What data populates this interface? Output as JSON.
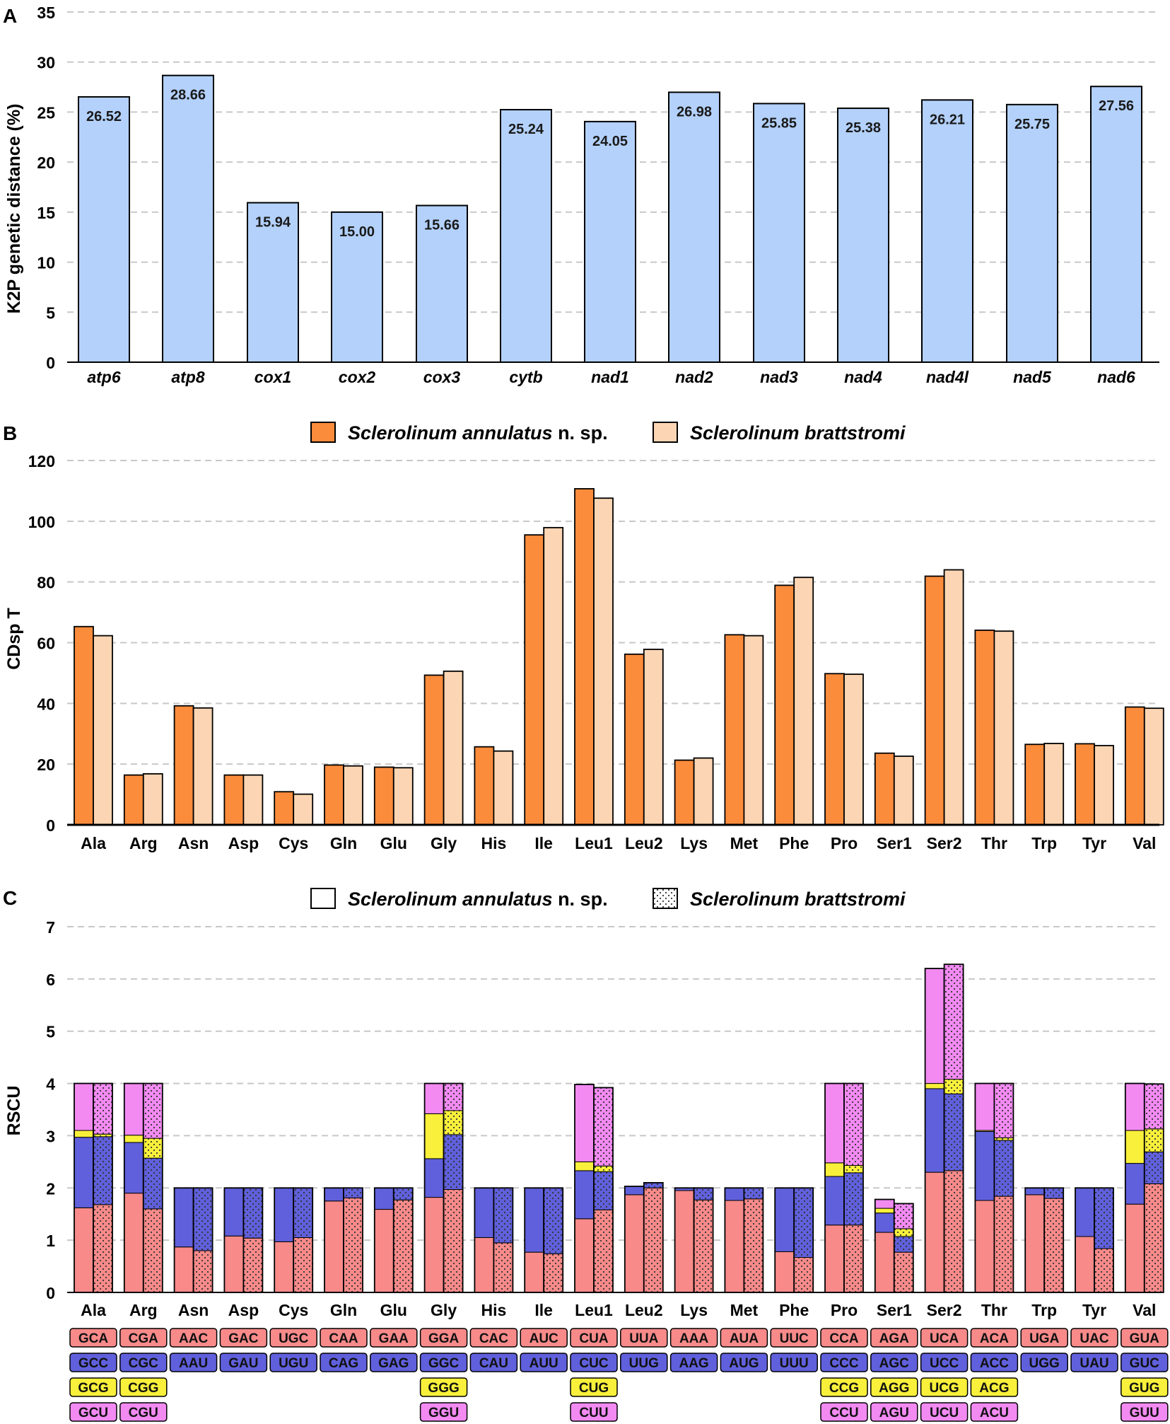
{
  "colors": {
    "barA": "#b3d1fb",
    "annulatus": "#fb8c3c",
    "brattstromi": "#fcd6b4",
    "c1": "#f88a8a",
    "c2": "#6060dc",
    "c3": "#f8f03a",
    "c4": "#f28af2",
    "grid": "#c8c8c8"
  },
  "chart_data": [
    {
      "panel": "A",
      "type": "bar",
      "title": "",
      "ylabel": "K2P genetic distance (%)",
      "xlabel": "",
      "ylim": [
        0,
        35
      ],
      "yticks": [
        "0",
        "5",
        "10",
        "15",
        "20",
        "25",
        "30",
        "35"
      ],
      "grid": "horizontal dashed",
      "categories": [
        "atp6",
        "atp8",
        "cox1",
        "cox2",
        "cox3",
        "cytb",
        "nad1",
        "nad2",
        "nad3",
        "nad4",
        "nad4l",
        "nad5",
        "nad6"
      ],
      "values": [
        26.52,
        28.66,
        15.94,
        15.0,
        15.66,
        25.24,
        24.05,
        26.98,
        25.85,
        25.38,
        26.21,
        25.75,
        27.56
      ],
      "data_labels": [
        "26.52",
        "28.66",
        "15.94",
        "15.00",
        "15.66",
        "25.24",
        "24.05",
        "26.98",
        "25.85",
        "25.38",
        "26.21",
        "25.75",
        "27.56"
      ]
    },
    {
      "panel": "B",
      "type": "bar",
      "title": "",
      "ylabel": "CDsp T",
      "xlabel": "",
      "ylim": [
        0,
        120
      ],
      "yticks": [
        "0",
        "20",
        "40",
        "60",
        "80",
        "100",
        "120"
      ],
      "grid": "horizontal dashed",
      "legend": {
        "position": "top",
        "entries": [
          {
            "italic": "Sclerolinum annulatus",
            "suffix": " n. sp."
          },
          {
            "italic": "Sclerolinum brattstromi",
            "suffix": ""
          }
        ]
      },
      "categories": [
        "Ala",
        "Arg",
        "Asn",
        "Asp",
        "Cys",
        "Gln",
        "Glu",
        "Gly",
        "His",
        "Ile",
        "Leu1",
        "Leu2",
        "Lys",
        "Met",
        "Phe",
        "Pro",
        "Ser1",
        "Ser2",
        "Thr",
        "Trp",
        "Tyr",
        "Val"
      ],
      "series": [
        {
          "name": "Sclerolinum annulatus n. sp.",
          "values": [
            65.3,
            16.4,
            39.2,
            16.4,
            10.9,
            19.7,
            19.0,
            49.3,
            25.7,
            95.5,
            110.7,
            56.2,
            21.3,
            62.6,
            78.9,
            49.8,
            23.6,
            81.9,
            64.1,
            26.5,
            26.7,
            38.8
          ]
        },
        {
          "name": "Sclerolinum brattstromi",
          "values": [
            62.3,
            16.8,
            38.5,
            16.4,
            10.1,
            19.4,
            18.8,
            50.6,
            24.3,
            97.9,
            107.6,
            57.8,
            22.0,
            62.3,
            81.5,
            49.6,
            22.6,
            84.0,
            63.8,
            26.8,
            26.1,
            38.4
          ]
        }
      ]
    },
    {
      "panel": "C",
      "type": "bar",
      "stacked": true,
      "title": "",
      "ylabel": "RSCU",
      "xlabel": "",
      "ylim": [
        0,
        7
      ],
      "yticks": [
        "0",
        "1",
        "2",
        "3",
        "4",
        "5",
        "6",
        "7"
      ],
      "grid": "horizontal dashed",
      "legend": {
        "position": "top",
        "entries": [
          {
            "italic": "Sclerolinum annulatus",
            "suffix": " n. sp."
          },
          {
            "italic": "Sclerolinum brattstromi",
            "suffix": ""
          }
        ]
      },
      "categories": [
        "Ala",
        "Arg",
        "Asn",
        "Asp",
        "Cys",
        "Gln",
        "Glu",
        "Gly",
        "His",
        "Ile",
        "Leu1",
        "Leu2",
        "Lys",
        "Met",
        "Phe",
        "Pro",
        "Ser1",
        "Ser2",
        "Thr",
        "Trp",
        "Tyr",
        "Val"
      ],
      "codons": [
        [
          "GCA",
          "GCC",
          "GCG",
          "GCU"
        ],
        [
          "CGA",
          "CGC",
          "CGG",
          "CGU"
        ],
        [
          "AAC",
          "AAU"
        ],
        [
          "GAC",
          "GAU"
        ],
        [
          "UGC",
          "UGU"
        ],
        [
          "CAA",
          "CAG"
        ],
        [
          "GAA",
          "GAG"
        ],
        [
          "GGA",
          "GGC",
          "GGG",
          "GGU"
        ],
        [
          "CAC",
          "CAU"
        ],
        [
          "AUC",
          "AUU"
        ],
        [
          "CUA",
          "CUC",
          "CUG",
          "CUU"
        ],
        [
          "UUA",
          "UUG"
        ],
        [
          "AAA",
          "AAG"
        ],
        [
          "AUA",
          "AUG"
        ],
        [
          "UUC",
          "UUU"
        ],
        [
          "CCA",
          "CCC",
          "CCG",
          "CCU"
        ],
        [
          "AGA",
          "AGC",
          "AGG",
          "AGU"
        ],
        [
          "UCA",
          "UCC",
          "UCG",
          "UCU"
        ],
        [
          "ACA",
          "ACC",
          "ACG",
          "ACU"
        ],
        [
          "UGA",
          "UGG"
        ],
        [
          "UAC",
          "UAU"
        ],
        [
          "GUA",
          "GUC",
          "GUG",
          "GUU"
        ]
      ],
      "series": [
        {
          "name": "Sclerolinum annulatus n. sp.",
          "pattern": "plain",
          "stacks": [
            [
              1.62,
              1.35,
              0.13,
              0.9
            ],
            [
              1.9,
              0.97,
              0.14,
              0.99
            ],
            [
              0.87,
              1.13
            ],
            [
              1.08,
              0.92
            ],
            [
              0.97,
              1.03
            ],
            [
              1.75,
              0.25
            ],
            [
              1.59,
              0.41
            ],
            [
              1.82,
              0.74,
              0.86,
              0.58
            ],
            [
              1.05,
              0.95
            ],
            [
              0.77,
              1.23
            ],
            [
              1.41,
              0.92,
              0.17,
              1.48
            ],
            [
              1.87,
              0.16
            ],
            [
              1.95,
              0.05
            ],
            [
              1.76,
              0.24
            ],
            [
              0.78,
              1.22
            ],
            [
              1.29,
              0.93,
              0.26,
              1.52
            ],
            [
              1.15,
              0.37,
              0.09,
              0.17
            ],
            [
              2.3,
              1.6,
              0.1,
              2.2
            ],
            [
              1.76,
              1.32,
              0.02,
              0.9
            ],
            [
              1.87,
              0.13
            ],
            [
              1.07,
              0.93
            ],
            [
              1.69,
              0.78,
              0.63,
              0.9
            ]
          ]
        },
        {
          "name": "Sclerolinum brattstromi",
          "pattern": "dotted",
          "stacks": [
            [
              1.68,
              1.3,
              0.05,
              0.97
            ],
            [
              1.6,
              0.97,
              0.38,
              1.05
            ],
            [
              0.8,
              1.2
            ],
            [
              1.04,
              0.96
            ],
            [
              1.05,
              0.95
            ],
            [
              1.81,
              0.19
            ],
            [
              1.77,
              0.23
            ],
            [
              1.97,
              1.05,
              0.46,
              0.52
            ],
            [
              0.95,
              1.05
            ],
            [
              0.74,
              1.26
            ],
            [
              1.58,
              0.73,
              0.11,
              1.5
            ],
            [
              2.0,
              0.1
            ],
            [
              1.77,
              0.23
            ],
            [
              1.79,
              0.21
            ],
            [
              0.67,
              1.33
            ],
            [
              1.29,
              1.0,
              0.14,
              1.57
            ],
            [
              0.77,
              0.3,
              0.15,
              0.48
            ],
            [
              2.33,
              1.47,
              0.28,
              2.2
            ],
            [
              1.84,
              1.07,
              0.05,
              1.04
            ],
            [
              1.8,
              0.2
            ],
            [
              0.84,
              1.16
            ],
            [
              2.08,
              0.61,
              0.44,
              0.86
            ]
          ]
        }
      ]
    }
  ],
  "panel_labels": [
    "A",
    "B",
    "C"
  ]
}
